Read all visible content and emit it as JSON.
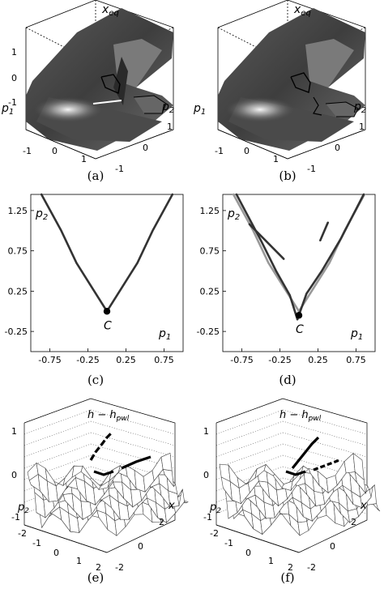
{
  "panels": {
    "a": {
      "caption": "(a)",
      "zlabel": "x",
      "zlabel_sub": "eq",
      "xlabel": "p",
      "xlabel_sub": "1",
      "ylabel": "p",
      "ylabel_sub": "2",
      "zticks": [
        "1",
        "0",
        "-1"
      ],
      "xticks": [
        "-1",
        "0",
        "1"
      ],
      "yticks": [
        "1",
        "0",
        "-1"
      ]
    },
    "b": {
      "caption": "(b)",
      "zlabel": "x",
      "zlabel_sub": "eq",
      "xlabel": "p",
      "xlabel_sub": "1",
      "ylabel": "p",
      "ylabel_sub": "2",
      "xticks": [
        "-1",
        "0",
        "1"
      ],
      "yticks": [
        "1",
        "0",
        "-1"
      ]
    },
    "c": {
      "caption": "(c)",
      "xlabel": "p",
      "xlabel_sub": "1",
      "ylabel": "p",
      "ylabel_sub": "2",
      "point_label": "C"
    },
    "d": {
      "caption": "(d)",
      "xlabel": "p",
      "xlabel_sub": "1",
      "ylabel": "p",
      "ylabel_sub": "2",
      "point_label": "C"
    },
    "e": {
      "caption": "(e)",
      "zlabel": "h − h",
      "zlabel_sub": "pwl",
      "ylabel": "p",
      "ylabel_sub": "2",
      "xlabel": "x",
      "zticks": [
        "1",
        "0",
        "-1"
      ],
      "pticks": [
        "-2",
        "-1",
        "0",
        "1",
        "2"
      ],
      "xticks": [
        "2",
        "0",
        "-2"
      ]
    },
    "f": {
      "caption": "(f)",
      "zlabel": "h − h",
      "zlabel_sub": "pwl",
      "ylabel": "p",
      "ylabel_sub": "2",
      "xlabel": "x",
      "zticks": [
        "1",
        "0",
        "-1"
      ],
      "pticks": [
        "-2",
        "-1",
        "0",
        "1",
        "2"
      ],
      "xticks": [
        "2",
        "0",
        "-2"
      ]
    }
  },
  "chart_data": [
    {
      "type": "line",
      "panel": "c",
      "x_ticks": [
        "-0.75",
        "-0.25",
        "0.25",
        "0.75"
      ],
      "y_ticks": [
        "1.25",
        "0.75",
        "0.25",
        "-0.25"
      ],
      "xlim": [
        -1.0,
        1.0
      ],
      "ylim": [
        -0.5,
        1.45
      ],
      "series": [
        {
          "color": "#333333",
          "x": [
            -0.86,
            -0.6,
            -0.4,
            -0.2,
            -0.08,
            0.0
          ],
          "y": [
            1.45,
            1.0,
            0.6,
            0.3,
            0.12,
            0.0
          ]
        },
        {
          "color": "#333333",
          "x": [
            0.0,
            0.08,
            0.2,
            0.4,
            0.6,
            0.86
          ],
          "y": [
            0.0,
            0.12,
            0.3,
            0.6,
            1.0,
            1.45
          ]
        }
      ],
      "point": {
        "x": 0.0,
        "y": 0.0
      }
    },
    {
      "type": "line",
      "panel": "d",
      "x_ticks": [
        "-0.75",
        "-0.25",
        "0.25",
        "0.75"
      ],
      "y_ticks": [
        "1.25",
        "0.75",
        "0.25",
        "-0.25"
      ],
      "xlim": [
        -1.0,
        1.0
      ],
      "ylim": [
        -0.5,
        1.45
      ],
      "series": [
        {
          "color": "#999999",
          "x": [
            -0.86,
            -0.6,
            -0.4,
            -0.2,
            -0.08,
            0.0
          ],
          "y": [
            1.45,
            1.0,
            0.6,
            0.3,
            0.12,
            0.0
          ]
        },
        {
          "color": "#999999",
          "x": [
            0.0,
            0.08,
            0.2,
            0.4,
            0.6,
            0.86
          ],
          "y": [
            0.0,
            0.12,
            0.3,
            0.6,
            1.0,
            1.45
          ]
        },
        {
          "color": "#333333",
          "x": [
            -0.82,
            -0.5,
            -0.3,
            -0.12,
            -0.02
          ],
          "y": [
            1.45,
            0.88,
            0.5,
            0.2,
            -0.1
          ]
        },
        {
          "color": "#333333",
          "x": [
            -0.02,
            0.1,
            0.3,
            0.55,
            0.85
          ],
          "y": [
            -0.1,
            0.22,
            0.5,
            0.9,
            1.45
          ]
        },
        {
          "color": "#333333",
          "x": [
            -0.65,
            -0.2
          ],
          "y": [
            1.08,
            0.65
          ]
        },
        {
          "color": "#333333",
          "x": [
            0.28,
            0.38
          ],
          "y": [
            0.88,
            1.1
          ]
        }
      ],
      "point": {
        "x": 0.0,
        "y": -0.05
      }
    }
  ]
}
